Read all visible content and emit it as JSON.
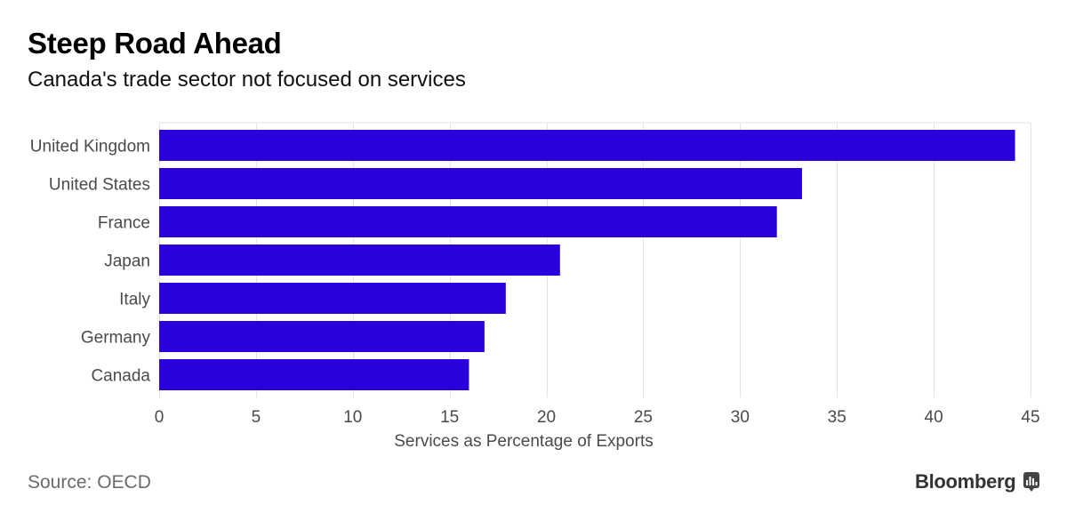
{
  "header": {
    "title": "Steep Road Ahead",
    "subtitle": "Canada's trade sector not focused on services"
  },
  "footer": {
    "source": "Source: OECD",
    "brand": "Bloomberg",
    "brand_icon": "bloomberg-terminal-icon"
  },
  "colors": {
    "bar": "#2a00dc",
    "grid": "#e3e3e3",
    "label": "#4a4a4a"
  },
  "chart_data": {
    "type": "bar",
    "orientation": "horizontal",
    "title": "Steep Road Ahead",
    "subtitle": "Canada's trade sector not focused on services",
    "categories": [
      "United Kingdom",
      "United States",
      "France",
      "Japan",
      "Italy",
      "Germany",
      "Canada"
    ],
    "values": [
      44.2,
      33.2,
      31.9,
      20.7,
      17.9,
      16.8,
      16.0
    ],
    "xlabel": "Services as Percentage of Exports",
    "ylabel": "",
    "xlim": [
      0,
      45
    ],
    "xticks": [
      0,
      5,
      10,
      15,
      20,
      25,
      30,
      35,
      40,
      45
    ],
    "grid": true,
    "legend": "none"
  }
}
